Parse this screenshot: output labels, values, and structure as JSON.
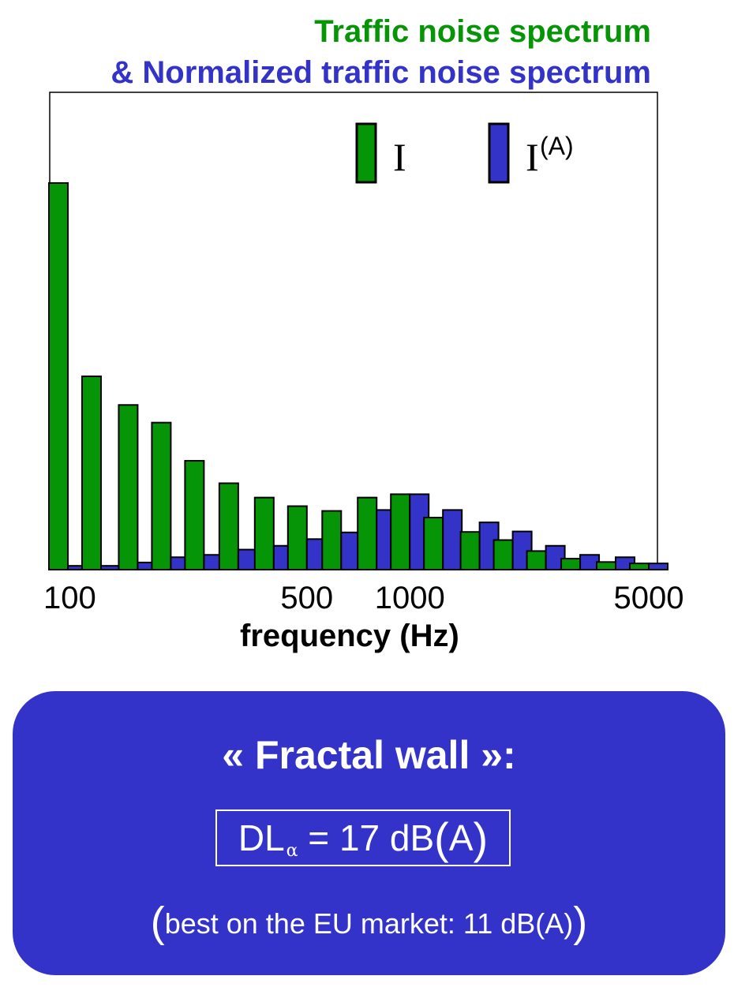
{
  "colors": {
    "green": "#069506",
    "blue": "#3333c8",
    "panel": "#3433c9"
  },
  "chart_data": {
    "type": "bar",
    "title_line1": "Traffic noise spectrum",
    "title_line2": "& Normalized traffic  noise spectrum",
    "xlabel": "frequency (Hz)",
    "ylabel": "",
    "x_scale": "log",
    "xlim": [
      100,
      5000
    ],
    "ylim": [
      0,
      100
    ],
    "x_ticks": [
      100,
      500,
      1000,
      5000
    ],
    "x_tick_labels": [
      "100",
      "500",
      "1000",
      "5000"
    ],
    "legend_position": "top-right",
    "categories": [
      100,
      125,
      160,
      200,
      250,
      315,
      400,
      500,
      630,
      800,
      1000,
      1250,
      1600,
      2000,
      2500,
      3150,
      4000,
      5000
    ],
    "series": [
      {
        "legend_symbol": "I",
        "color": "#069506",
        "values": [
          81,
          40.5,
          34.5,
          30.8,
          22.8,
          18.1,
          15.1,
          13.3,
          12.3,
          15.1,
          15.8,
          10.9,
          7.9,
          6.2,
          3.9,
          2.3,
          1.6,
          1.3
        ]
      },
      {
        "legend_symbol": "I",
        "legend_superscript": "(A)",
        "color": "#3333c8",
        "values": [
          0.8,
          0.8,
          1.5,
          2.6,
          3.1,
          4.2,
          5.0,
          6.4,
          7.8,
          12.5,
          15.8,
          12.5,
          9.9,
          8.0,
          5.0,
          3.1,
          2.6,
          1.3
        ]
      }
    ]
  },
  "panel": {
    "heading": "« Fractal wall »:",
    "formula_main": "DL",
    "formula_sub": "α",
    "formula_rest": " = 17 dB",
    "formula_paren_open": "(",
    "formula_unit": "A",
    "formula_paren_close": ")",
    "note_open": "(",
    "note_text": "best on the EU market: 11 dB(A)",
    "note_close": ")"
  }
}
